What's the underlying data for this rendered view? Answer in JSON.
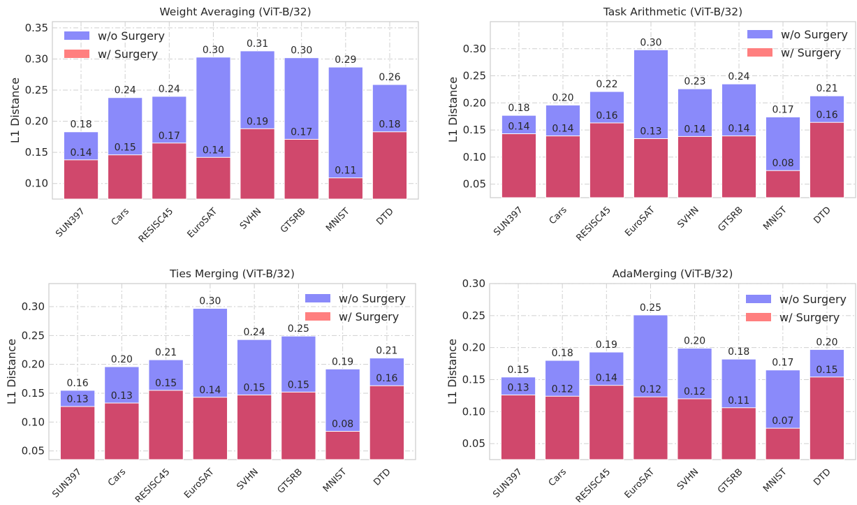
{
  "chart_data": [
    {
      "type": "bar",
      "title": "Weight Averaging (ViT-B/32)",
      "xlabel": "",
      "ylabel": "L1 Distance",
      "ylim": [
        0.075,
        0.36
      ],
      "yticks": [
        0.1,
        0.15,
        0.2,
        0.25,
        0.3,
        0.35
      ],
      "categories": [
        "SUN397",
        "Cars",
        "RESISC45",
        "EuroSAT",
        "SVHN",
        "GTSRB",
        "MNIST",
        "DTD"
      ],
      "series": [
        {
          "name": "w/o Surgery",
          "values": [
            0.183,
            0.238,
            0.24,
            0.303,
            0.313,
            0.302,
            0.287,
            0.259
          ],
          "labels": [
            "0.18",
            "0.24",
            "0.24",
            "0.30",
            "0.31",
            "0.30",
            "0.29",
            "0.26"
          ]
        },
        {
          "name": "w/ Surgery",
          "values": [
            0.138,
            0.146,
            0.165,
            0.142,
            0.188,
            0.171,
            0.109,
            0.183
          ],
          "labels": [
            "0.14",
            "0.15",
            "0.17",
            "0.14",
            "0.19",
            "0.17",
            "0.11",
            "0.18"
          ]
        }
      ],
      "legend": "top-left",
      "grid": true
    },
    {
      "type": "bar",
      "title": "Task Arithmetic (ViT-B/32)",
      "xlabel": "",
      "ylabel": "L1 Distance",
      "ylim": [
        0.025,
        0.35
      ],
      "yticks": [
        0.05,
        0.1,
        0.15,
        0.2,
        0.25,
        0.3
      ],
      "categories": [
        "SUN397",
        "Cars",
        "RESISC45",
        "EuroSAT",
        "SVHN",
        "GTSRB",
        "MNIST",
        "DTD"
      ],
      "series": [
        {
          "name": "w/o Surgery",
          "values": [
            0.177,
            0.196,
            0.221,
            0.298,
            0.226,
            0.235,
            0.174,
            0.213
          ],
          "labels": [
            "0.18",
            "0.20",
            "0.22",
            "0.30",
            "0.23",
            "0.24",
            "0.17",
            "0.21"
          ]
        },
        {
          "name": "w/ Surgery",
          "values": [
            0.143,
            0.139,
            0.163,
            0.134,
            0.138,
            0.139,
            0.075,
            0.164
          ],
          "labels": [
            "0.14",
            "0.14",
            "0.16",
            "0.13",
            "0.14",
            "0.14",
            "0.08",
            "0.16"
          ]
        }
      ],
      "legend": "top-right",
      "grid": true
    },
    {
      "type": "bar",
      "title": "Ties Merging (ViT-B/32)",
      "xlabel": "",
      "ylabel": "L1 Distance",
      "ylim": [
        0.035,
        0.34
      ],
      "yticks": [
        0.05,
        0.1,
        0.15,
        0.2,
        0.25,
        0.3
      ],
      "categories": [
        "SUN397",
        "Cars",
        "RESISC45",
        "EuroSAT",
        "SVHN",
        "GTSRB",
        "MNIST",
        "DTD"
      ],
      "series": [
        {
          "name": "w/o Surgery",
          "values": [
            0.155,
            0.196,
            0.208,
            0.297,
            0.243,
            0.249,
            0.192,
            0.211
          ],
          "labels": [
            "0.16",
            "0.20",
            "0.21",
            "0.30",
            "0.24",
            "0.25",
            "0.19",
            "0.21"
          ]
        },
        {
          "name": "w/ Surgery",
          "values": [
            0.127,
            0.133,
            0.155,
            0.143,
            0.147,
            0.152,
            0.084,
            0.163
          ],
          "labels": [
            "0.13",
            "0.13",
            "0.15",
            "0.14",
            "0.15",
            "0.15",
            "0.08",
            "0.16"
          ]
        }
      ],
      "legend": "top-right",
      "grid": true
    },
    {
      "type": "bar",
      "title": "AdaMerging (ViT-B/32)",
      "xlabel": "",
      "ylabel": "L1 Distance",
      "ylim": [
        0.025,
        0.3
      ],
      "yticks": [
        0.05,
        0.1,
        0.15,
        0.2,
        0.25,
        0.3
      ],
      "categories": [
        "SUN397",
        "Cars",
        "RESISC45",
        "EuroSAT",
        "SVHN",
        "GTSRB",
        "MNIST",
        "DTD"
      ],
      "series": [
        {
          "name": "w/o Surgery",
          "values": [
            0.154,
            0.18,
            0.193,
            0.251,
            0.199,
            0.182,
            0.165,
            0.197
          ],
          "labels": [
            "0.15",
            "0.18",
            "0.19",
            "0.25",
            "0.20",
            "0.18",
            "0.17",
            "0.20"
          ]
        },
        {
          "name": "w/ Surgery",
          "values": [
            0.126,
            0.124,
            0.141,
            0.123,
            0.12,
            0.106,
            0.074,
            0.154
          ],
          "labels": [
            "0.13",
            "0.12",
            "0.14",
            "0.12",
            "0.12",
            "0.11",
            "0.07",
            "0.15"
          ]
        }
      ],
      "legend": "top-right",
      "grid": true
    }
  ],
  "colors": {
    "wo_surgery": "#8a8afa",
    "w_surgery": "#d0486c",
    "legend_w_surgery": "#ff7f7f",
    "grid": "#cfcfcf",
    "axis": "#cccccc",
    "text": "#262626"
  }
}
